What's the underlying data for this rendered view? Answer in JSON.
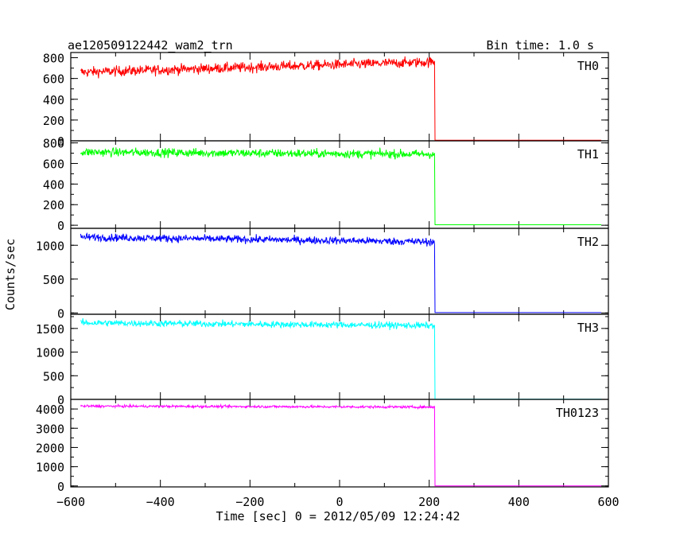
{
  "header": {
    "title": "ae120509122442_wam2_trn",
    "bin_time": "Bin time: 1.0 s"
  },
  "axes": {
    "ylabel": "Counts/sec",
    "xlabel": "Time [sec] 0 = 2012/05/09 12:24:42"
  },
  "chart_data": {
    "type": "line",
    "x_range": [
      -600,
      600
    ],
    "x_ticks": [
      -600,
      -400,
      -200,
      0,
      200,
      400,
      600
    ],
    "x_tick_labels": [
      "−600",
      "−400",
      "−200",
      "0",
      "200",
      "400",
      "600"
    ],
    "data_start": -578,
    "step_time": 212,
    "data_end": 584,
    "panels": [
      {
        "name": "TH0",
        "color": "#ff0000",
        "ylim": [
          0,
          850
        ],
        "y_ticks": [
          0,
          200,
          400,
          600,
          800
        ],
        "y_tick_labels": [
          "0",
          "200",
          "400",
          "600",
          "800"
        ],
        "level_start": 660,
        "level_end": 760,
        "noise": 35,
        "after": 5
      },
      {
        "name": "TH1",
        "color": "#00ff00",
        "ylim": [
          -30,
          820
        ],
        "y_ticks": [
          0,
          200,
          400,
          600,
          800
        ],
        "y_tick_labels": [
          "0",
          "200",
          "400",
          "600",
          "800"
        ],
        "level_start": 710,
        "level_end": 690,
        "noise": 30,
        "after": 5
      },
      {
        "name": "TH2",
        "color": "#0000ff",
        "ylim": [
          -20,
          1250
        ],
        "y_ticks": [
          0,
          500,
          1000
        ],
        "y_tick_labels": [
          "0",
          "500",
          "1000"
        ],
        "level_start": 1120,
        "level_end": 1050,
        "noise": 40,
        "after": 5
      },
      {
        "name": "TH3",
        "color": "#00ffff",
        "ylim": [
          0,
          1800
        ],
        "y_ticks": [
          0,
          500,
          1000,
          1500
        ],
        "y_tick_labels": [
          "0",
          "500",
          "1000",
          "1500"
        ],
        "level_start": 1620,
        "level_end": 1560,
        "noise": 50,
        "after": 5
      },
      {
        "name": "TH0123",
        "color": "#ff00ff",
        "ylim": [
          -50,
          4500
        ],
        "y_ticks": [
          0,
          1000,
          2000,
          3000,
          4000
        ],
        "y_tick_labels": [
          "0",
          "1000",
          "2000",
          "3000",
          "4000"
        ],
        "level_start": 4150,
        "level_end": 4100,
        "noise": 45,
        "after": 5
      }
    ]
  }
}
